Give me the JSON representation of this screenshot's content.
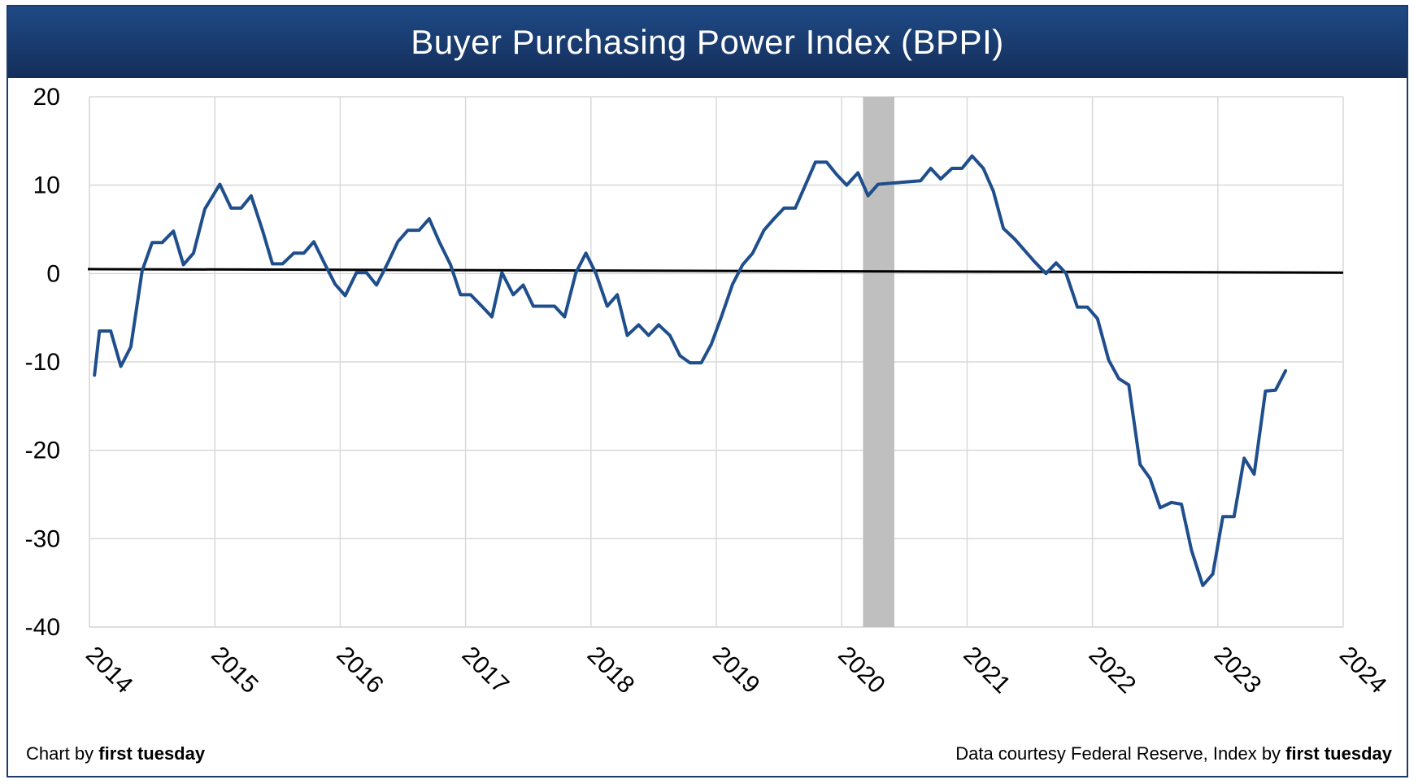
{
  "chart_data": {
    "type": "line",
    "title": "Buyer Purchasing Power Index (BPPI)",
    "xlabel": "",
    "ylabel": "",
    "xlim": [
      2014,
      2024
    ],
    "ylim": [
      -40,
      20
    ],
    "y_ticks": [
      20,
      10,
      0,
      -10,
      -20,
      -30,
      -40
    ],
    "x_ticks": [
      "2014",
      "2015",
      "2016",
      "2017",
      "2018",
      "2019",
      "2020",
      "2021",
      "2022",
      "2023",
      "2024"
    ],
    "grid": true,
    "shaded_band": {
      "x_start": 2020.17,
      "x_end": 2020.42,
      "color": "#bfbfbf"
    },
    "zero_line": {
      "y_start": 0.5,
      "y_end": 0.1,
      "color": "#000000"
    },
    "series": [
      {
        "color": "#1f4e8c",
        "points": [
          [
            2014.04,
            -11.5
          ],
          [
            2014.08,
            -6.5
          ],
          [
            2014.17,
            -6.5
          ],
          [
            2014.25,
            -10.5
          ],
          [
            2014.33,
            -8.3
          ],
          [
            2014.42,
            0.3
          ],
          [
            2014.5,
            3.5
          ],
          [
            2014.58,
            3.5
          ],
          [
            2014.67,
            4.8
          ],
          [
            2014.75,
            1.0
          ],
          [
            2014.83,
            2.3
          ],
          [
            2014.92,
            7.3
          ],
          [
            2015.04,
            10.1
          ],
          [
            2015.13,
            7.4
          ],
          [
            2015.21,
            7.4
          ],
          [
            2015.29,
            8.8
          ],
          [
            2015.38,
            4.9
          ],
          [
            2015.46,
            1.1
          ],
          [
            2015.54,
            1.1
          ],
          [
            2015.63,
            2.3
          ],
          [
            2015.71,
            2.3
          ],
          [
            2015.79,
            3.6
          ],
          [
            2015.88,
            1.0
          ],
          [
            2015.96,
            -1.2
          ],
          [
            2016.04,
            -2.5
          ],
          [
            2016.13,
            0.1
          ],
          [
            2016.21,
            0.1
          ],
          [
            2016.29,
            -1.3
          ],
          [
            2016.38,
            1.2
          ],
          [
            2016.46,
            3.6
          ],
          [
            2016.54,
            4.9
          ],
          [
            2016.63,
            4.9
          ],
          [
            2016.71,
            6.2
          ],
          [
            2016.79,
            3.6
          ],
          [
            2016.88,
            1.0
          ],
          [
            2016.96,
            -2.4
          ],
          [
            2017.04,
            -2.4
          ],
          [
            2017.13,
            -3.7
          ],
          [
            2017.21,
            -4.9
          ],
          [
            2017.29,
            0.1
          ],
          [
            2017.38,
            -2.4
          ],
          [
            2017.46,
            -1.3
          ],
          [
            2017.54,
            -3.7
          ],
          [
            2017.63,
            -3.7
          ],
          [
            2017.71,
            -3.7
          ],
          [
            2017.79,
            -4.9
          ],
          [
            2017.88,
            0.1
          ],
          [
            2017.96,
            2.3
          ],
          [
            2018.04,
            0.0
          ],
          [
            2018.13,
            -3.7
          ],
          [
            2018.21,
            -2.4
          ],
          [
            2018.29,
            -7.0
          ],
          [
            2018.38,
            -5.8
          ],
          [
            2018.46,
            -7.0
          ],
          [
            2018.54,
            -5.8
          ],
          [
            2018.63,
            -7.0
          ],
          [
            2018.71,
            -9.3
          ],
          [
            2018.79,
            -10.1
          ],
          [
            2018.88,
            -10.1
          ],
          [
            2018.96,
            -8.0
          ],
          [
            2019.04,
            -4.9
          ],
          [
            2019.13,
            -1.2
          ],
          [
            2019.21,
            1.0
          ],
          [
            2019.29,
            2.3
          ],
          [
            2019.38,
            4.9
          ],
          [
            2019.46,
            6.2
          ],
          [
            2019.54,
            7.4
          ],
          [
            2019.63,
            7.4
          ],
          [
            2019.71,
            10.0
          ],
          [
            2019.79,
            12.6
          ],
          [
            2019.88,
            12.6
          ],
          [
            2019.96,
            11.2
          ],
          [
            2020.04,
            10.0
          ],
          [
            2020.13,
            11.4
          ],
          [
            2020.21,
            8.8
          ],
          [
            2020.29,
            10.1
          ],
          [
            2020.46,
            10.3
          ],
          [
            2020.63,
            10.5
          ],
          [
            2020.71,
            11.9
          ],
          [
            2020.79,
            10.7
          ],
          [
            2020.88,
            11.9
          ],
          [
            2020.96,
            11.9
          ],
          [
            2021.04,
            13.3
          ],
          [
            2021.13,
            11.9
          ],
          [
            2021.21,
            9.3
          ],
          [
            2021.29,
            5.1
          ],
          [
            2021.38,
            3.9
          ],
          [
            2021.46,
            2.6
          ],
          [
            2021.54,
            1.3
          ],
          [
            2021.63,
            0.0
          ],
          [
            2021.71,
            1.2
          ],
          [
            2021.79,
            0.0
          ],
          [
            2021.88,
            -3.8
          ],
          [
            2021.96,
            -3.8
          ],
          [
            2022.04,
            -5.1
          ],
          [
            2022.13,
            -9.8
          ],
          [
            2022.21,
            -11.9
          ],
          [
            2022.29,
            -12.6
          ],
          [
            2022.38,
            -21.6
          ],
          [
            2022.46,
            -23.2
          ],
          [
            2022.54,
            -26.5
          ],
          [
            2022.63,
            -25.9
          ],
          [
            2022.71,
            -26.1
          ],
          [
            2022.79,
            -31.3
          ],
          [
            2022.88,
            -35.3
          ],
          [
            2022.96,
            -34.0
          ],
          [
            2023.04,
            -27.5
          ],
          [
            2023.13,
            -27.5
          ],
          [
            2023.21,
            -20.9
          ],
          [
            2023.29,
            -22.7
          ],
          [
            2023.38,
            -13.3
          ],
          [
            2023.46,
            -13.2
          ],
          [
            2023.54,
            -11.0
          ]
        ]
      }
    ]
  },
  "footer": {
    "left_prefix": "Chart by ",
    "left_brand": "first tuesday",
    "right_prefix": "Data courtesy Federal Reserve, Index by ",
    "right_brand": "first tuesday"
  }
}
